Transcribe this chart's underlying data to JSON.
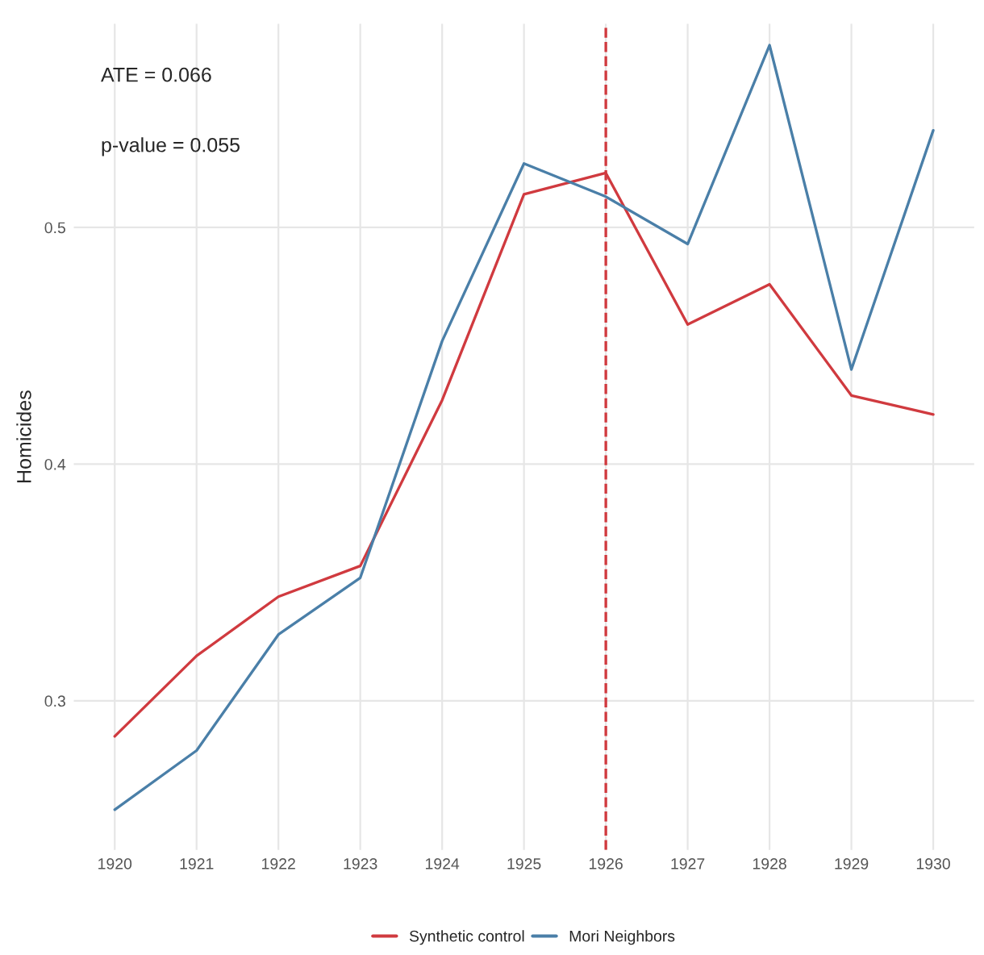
{
  "chart_data": {
    "type": "line",
    "ylabel": "Homicides",
    "x": [
      1920,
      1921,
      1922,
      1923,
      1924,
      1925,
      1926,
      1927,
      1928,
      1929,
      1930
    ],
    "series": [
      {
        "name": "Synthetic control",
        "color": "#d03a3f",
        "values": [
          0.285,
          0.319,
          0.344,
          0.357,
          0.427,
          0.514,
          0.523,
          0.459,
          0.476,
          0.429,
          0.421
        ]
      },
      {
        "name": "Mori Neighbors",
        "color": "#4a7fa8",
        "values": [
          0.254,
          0.279,
          0.328,
          0.352,
          0.452,
          0.527,
          0.513,
          0.493,
          0.577,
          0.44,
          0.541
        ]
      }
    ],
    "xlim": [
      1919.5,
      1930.5
    ],
    "xticks": [
      1920,
      1921,
      1922,
      1923,
      1924,
      1925,
      1926,
      1927,
      1928,
      1929,
      1930
    ],
    "ylim": [
      0.237,
      0.586
    ],
    "yticks": [
      0.3,
      0.4,
      0.5
    ],
    "ref_lines": [
      {
        "axis": "x",
        "value": 1926,
        "color": "#d03a3f",
        "line_style": "dashed"
      }
    ],
    "annotations": [
      "ATE = 0.066",
      "p-value = 0.055"
    ],
    "grid": true,
    "legend": "bottom",
    "line_style": "solid",
    "marker": "none"
  }
}
